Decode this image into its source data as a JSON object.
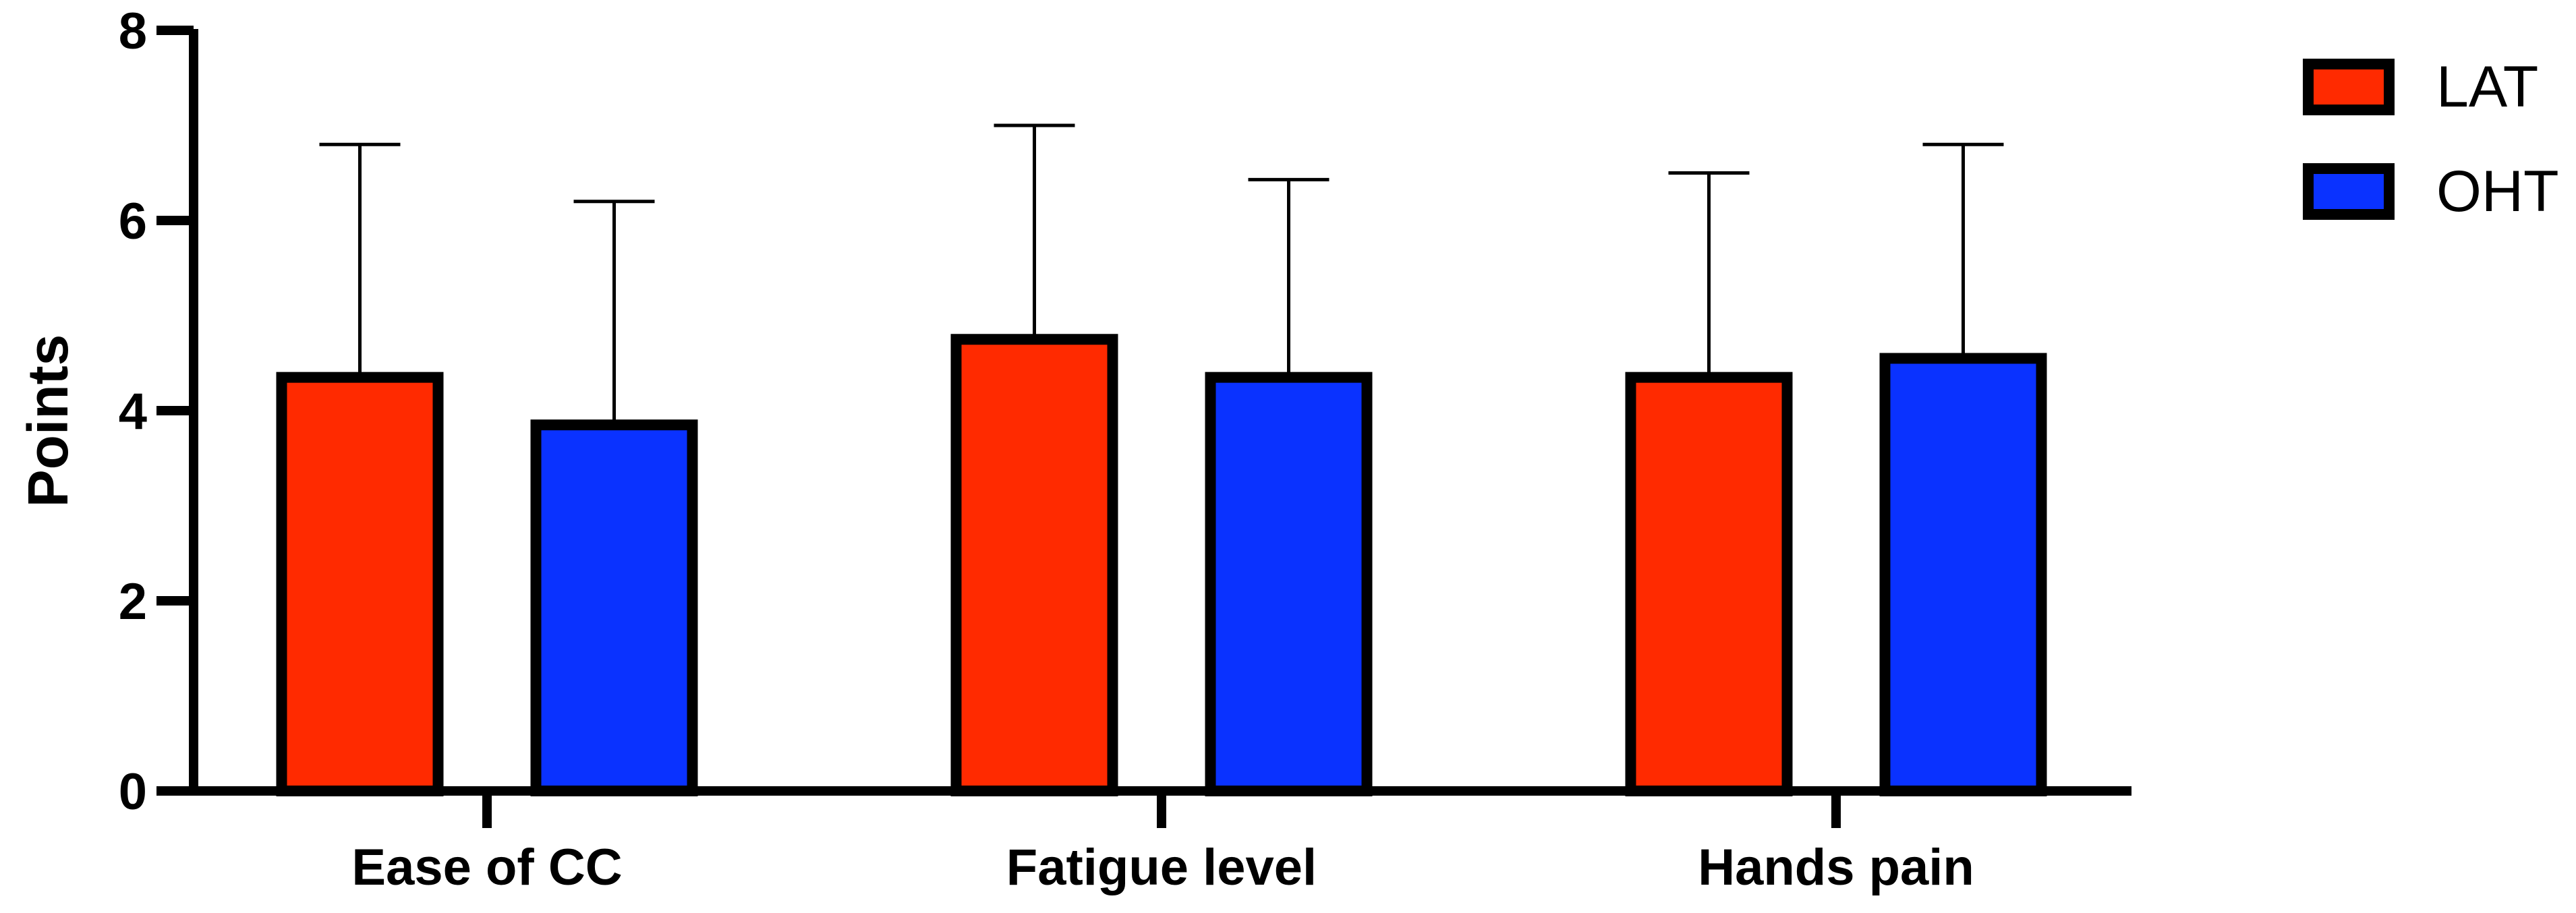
{
  "chart_data": {
    "type": "bar",
    "title": "",
    "xlabel": "",
    "ylabel": "Points",
    "ylim": [
      0,
      8
    ],
    "yticks": [
      "0",
      "2",
      "4",
      "6",
      "8"
    ],
    "categories": [
      "Ease of CC",
      "Fatigue level",
      "Hands pain"
    ],
    "series": [
      {
        "name": "LAT",
        "color": "#ff2a00",
        "values": [
          4.35,
          4.75,
          4.35
        ],
        "error": [
          2.45,
          2.25,
          2.15
        ]
      },
      {
        "name": "OHT",
        "color": "#0a32ff",
        "values": [
          3.85,
          4.35,
          4.55
        ],
        "error": [
          2.35,
          2.08,
          2.25
        ]
      }
    ],
    "legend_position": "top-right",
    "grid": false,
    "error_bars": "upper"
  }
}
